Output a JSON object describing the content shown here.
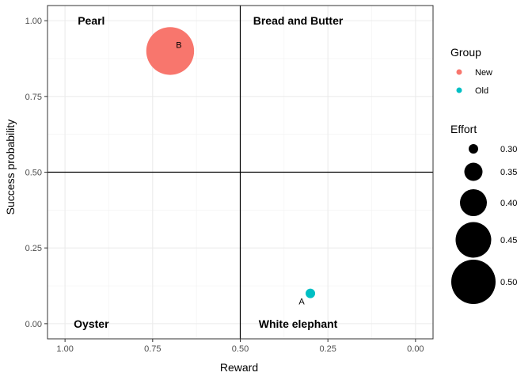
{
  "chart_data": {
    "type": "scatter",
    "title": "",
    "xlabel": "Reward",
    "ylabel": "Success probability",
    "x_reversed": true,
    "xlim": [
      1.05,
      -0.05
    ],
    "ylim": [
      -0.05,
      1.05
    ],
    "x_ticks": [
      1.0,
      0.75,
      0.5,
      0.25,
      0.0
    ],
    "x_tick_labels": [
      "1.00",
      "0.75",
      "0.50",
      "0.25",
      "0.00"
    ],
    "y_ticks": [
      0.0,
      0.25,
      0.5,
      0.75,
      1.0
    ],
    "y_tick_labels": [
      "0.00",
      "0.25",
      "0.50",
      "0.75",
      "1.00"
    ],
    "grid": true,
    "reference_lines": {
      "x": 0.5,
      "y": 0.5
    },
    "quadrant_labels": [
      {
        "text": "Pearl",
        "x": 0.925,
        "y": 1.0
      },
      {
        "text": "Bread and Butter",
        "x": 0.335,
        "y": 1.0
      },
      {
        "text": "Oyster",
        "x": 0.925,
        "y": 0.0
      },
      {
        "text": "White elephant",
        "x": 0.335,
        "y": 0.0
      }
    ],
    "points": [
      {
        "label": "A",
        "x": 0.3,
        "y": 0.1,
        "group": "Old",
        "effort": 0.3
      },
      {
        "label": "B",
        "x": 0.7,
        "y": 0.9,
        "group": "New",
        "effort": 0.52
      }
    ],
    "legend_position": "right",
    "legend": {
      "group": {
        "title": "Group",
        "entries": [
          {
            "label": "New",
            "color": "#F8766D"
          },
          {
            "label": "Old",
            "color": "#00BFC4"
          }
        ]
      },
      "effort": {
        "title": "Effort",
        "entries": [
          {
            "label": "0.30",
            "value": 0.3
          },
          {
            "label": "0.35",
            "value": 0.35
          },
          {
            "label": "0.40",
            "value": 0.4
          },
          {
            "label": "0.45",
            "value": 0.45
          },
          {
            "label": "0.50",
            "value": 0.5
          }
        ]
      }
    },
    "colors": {
      "New": "#F8766D",
      "Old": "#00BFC4"
    }
  }
}
